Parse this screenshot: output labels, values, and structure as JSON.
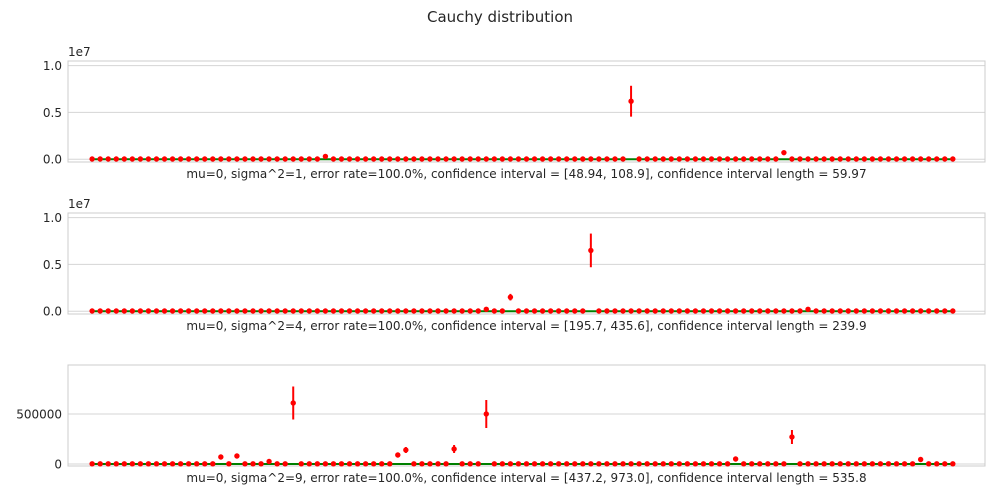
{
  "figure_title": "Cauchy distribution",
  "chart_data": [
    {
      "type": "scatter",
      "subtitle": "",
      "xlabel": "mu=0, sigma^2=1, error rate=100.0%, confidence interval = [48.94, 108.9], confidence interval length = 59.97",
      "ylabel": "",
      "offset_label": "1e7",
      "ytick_labels": [
        "0.0",
        "0.5",
        "1.0"
      ],
      "ytick_values": [
        0,
        5000000,
        10000000
      ],
      "ylim": [
        -300000,
        10500000
      ],
      "xlim": [
        -3,
        111
      ],
      "x_ticks_shown": false,
      "grid": true,
      "n_points": 108,
      "reference_line": {
        "y": 0,
        "color": "#008000"
      },
      "marker_color": "#ff0000",
      "default_value": 20000,
      "default_err": 60000,
      "highlights": [
        {
          "index": 29,
          "value": 300000,
          "err": 100000
        },
        {
          "index": 67,
          "value": 6200000,
          "err": 3300000
        },
        {
          "index": 86,
          "value": 700000,
          "err": 150000
        }
      ]
    },
    {
      "type": "scatter",
      "subtitle": "",
      "xlabel": "mu=0, sigma^2=4, error rate=100.0%, confidence interval = [195.7, 435.6], confidence interval length = 239.9",
      "ylabel": "",
      "offset_label": "1e7",
      "ytick_labels": [
        "0.0",
        "0.5",
        "1.0"
      ],
      "ytick_values": [
        0,
        5000000,
        10000000
      ],
      "ylim": [
        -300000,
        10500000
      ],
      "xlim": [
        -3,
        111
      ],
      "x_ticks_shown": false,
      "grid": true,
      "n_points": 108,
      "reference_line": {
        "y": 0,
        "color": "#008000"
      },
      "marker_color": "#ff0000",
      "default_value": 20000,
      "default_err": 60000,
      "highlights": [
        {
          "index": 49,
          "value": 200000,
          "err": 80000
        },
        {
          "index": 52,
          "value": 1500000,
          "err": 700000
        },
        {
          "index": 62,
          "value": 6500000,
          "err": 3600000
        },
        {
          "index": 89,
          "value": 200000,
          "err": 80000
        }
      ]
    },
    {
      "type": "scatter",
      "subtitle": "",
      "xlabel": "mu=0, sigma^2=9, error rate=100.0%, confidence interval = [437.2, 973.0], confidence interval length = 535.8",
      "ylabel": "",
      "offset_label": "",
      "ytick_labels": [
        "0",
        "500000"
      ],
      "ytick_values": [
        0,
        500000
      ],
      "ylim": [
        -20000,
        990000
      ],
      "xlim": [
        -3,
        111
      ],
      "x_ticks_shown": false,
      "grid": true,
      "n_points": 108,
      "reference_line": {
        "y": 0,
        "color": "#008000"
      },
      "marker_color": "#ff0000",
      "default_value": 2000,
      "default_err": 5000,
      "highlights": [
        {
          "index": 16,
          "value": 70000,
          "err": 20000
        },
        {
          "index": 18,
          "value": 80000,
          "err": 25000
        },
        {
          "index": 22,
          "value": 25000,
          "err": 10000
        },
        {
          "index": 25,
          "value": 610000,
          "err": 330000
        },
        {
          "index": 38,
          "value": 90000,
          "err": 40000
        },
        {
          "index": 39,
          "value": 140000,
          "err": 60000
        },
        {
          "index": 45,
          "value": 150000,
          "err": 80000
        },
        {
          "index": 49,
          "value": 500000,
          "err": 280000
        },
        {
          "index": 80,
          "value": 50000,
          "err": 15000
        },
        {
          "index": 87,
          "value": 270000,
          "err": 140000
        },
        {
          "index": 103,
          "value": 45000,
          "err": 10000
        }
      ]
    }
  ]
}
